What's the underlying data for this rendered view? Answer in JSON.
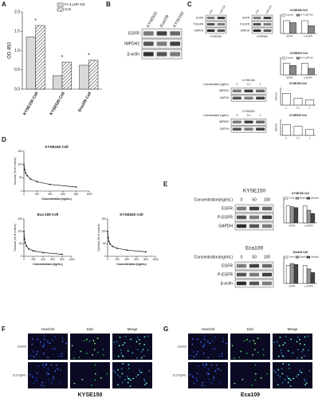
{
  "A": {
    "letter": "A",
    "y_label": "OD 450",
    "categories": [
      "KYSE150 Cell",
      "KYSE520 Cell",
      "Eca109 Cell"
    ],
    "series": [
      {
        "name": "Fr-4,LDP-D3",
        "color": "#d9d9d9",
        "values": [
          1.35,
          0.35,
          0.62
        ]
      },
      {
        "name": "Con",
        "color": "#ffffff",
        "pattern": "diagonal",
        "values": [
          1.65,
          0.7,
          0.75
        ]
      }
    ],
    "ylim": [
      0,
      2
    ],
    "yticks": [
      {
        "value": 0,
        "label": "0.0"
      },
      0.5,
      {
        "value": 1,
        "label": "1.0"
      },
      1.5,
      {
        "value": 2,
        "label": "2.0"
      }
    ],
    "significance": [
      "*",
      "*",
      "*"
    ]
  },
  "B": {
    "letter": "B",
    "columns": [
      "KYSE520",
      "Eca109",
      "KYSE150"
    ],
    "rows": [
      "EGFR",
      "IMPDH2",
      "β-actin"
    ]
  },
  "C": {
    "letter": "C",
    "blots": [
      {
        "columns": [
          "Con",
          "LDP-D3"
        ],
        "rows": [
          "EGFR",
          "P-EGFR",
          "GAPDH"
        ],
        "caption": "KYSE150"
      },
      {
        "columns": [
          "Con",
          "LDP-D3"
        ],
        "rows": [
          "EGFR",
          "P-EGFR",
          "GAPDH"
        ],
        "caption": "KYSE520"
      },
      {
        "title": "KYSE150",
        "dose_label": "Concentration (ng/mL)",
        "columns": [
          "0",
          "0.1",
          "1"
        ],
        "rows": [
          "IMPDH2",
          "GAPDH"
        ]
      },
      {
        "title": "KYSE520",
        "dose_label": "Concentration (ng/mL)",
        "columns": [
          "0",
          "0.1",
          "1"
        ],
        "rows": [
          "IMPDH2",
          "GAPDH"
        ]
      }
    ],
    "charts": [
      {
        "title": "KYSE150 Cell",
        "categories": [
          "EGFR",
          "p-EGFR"
        ],
        "series": [
          {
            "name": "Control",
            "color": "#ffffff",
            "values": [
              1.0,
              1.0
            ]
          },
          {
            "name": "Fr-4,LDP-D3",
            "color": "#888888",
            "values": [
              0.85,
              0.6
            ]
          }
        ],
        "ylim": [
          0,
          1.5
        ]
      },
      {
        "title": "KYSE520 Cell",
        "categories": [
          "EGFR",
          "p-EGFR"
        ],
        "series": [
          {
            "name": "Control",
            "color": "#ffffff",
            "values": [
              1.0,
              1.0
            ]
          },
          {
            "name": "Fr-4,LDP-D3",
            "color": "#888888",
            "values": [
              0.8,
              0.55
            ]
          }
        ],
        "ylim": [
          0,
          1.5
        ]
      },
      {
        "title": "KYSE150 Cell",
        "y_label": "IMPDH2",
        "categories": [
          "0",
          "0.1",
          "1"
        ],
        "color": "#ffffff",
        "values": [
          1.0,
          0.6,
          0.45
        ],
        "ylim": [
          0,
          1.5
        ]
      },
      {
        "title": "KYSE520 Cell",
        "y_label": "IMPDH2",
        "categories": [
          "0",
          "0.1",
          "1"
        ],
        "color": "#ffffff",
        "values": [
          1.0,
          0.85,
          0.55
        ],
        "ylim": [
          0,
          1.5
        ]
      }
    ]
  },
  "D": {
    "letter": "D",
    "charts": [
      {
        "title": "KYSE150 Cell",
        "x_label": "Concentration (ng/mL)",
        "y_label": "Survival (% of control)",
        "x": [
          0,
          12.5,
          25,
          50,
          100,
          200,
          400,
          800
        ],
        "values": [
          100,
          80,
          68,
          58,
          45,
          35,
          25,
          15
        ],
        "xlim": [
          0,
          1000
        ],
        "xticks": [
          0,
          200,
          400,
          600,
          800,
          1000
        ],
        "ylim": [
          0,
          150
        ],
        "yticks": [
          0,
          50,
          100,
          150
        ]
      },
      {
        "title": "Eca-109 Cell",
        "x_label": "Concentration (ng/mL)",
        "y_label": "Survival (% of control)",
        "x": [
          0,
          12.5,
          25,
          50,
          100,
          200,
          400,
          800
        ],
        "values": [
          100,
          70,
          55,
          42,
          30,
          22,
          15,
          8
        ],
        "xlim": [
          0,
          1000
        ],
        "xticks": [
          0,
          200,
          400,
          600,
          800,
          1000
        ],
        "ylim": [
          0,
          150
        ],
        "yticks": [
          0,
          50,
          100,
          150
        ]
      },
      {
        "title": "KYSE520 Cell",
        "x_label": "Concentration (ng/mL)",
        "y_label": "Survival (% of control)",
        "x": [
          0,
          12.5,
          25,
          50,
          100,
          200,
          400,
          800
        ],
        "values": [
          100,
          75,
          60,
          50,
          40,
          32,
          25,
          18
        ],
        "xlim": [
          0,
          1000
        ],
        "xticks": [
          0,
          200,
          400,
          600,
          800,
          1000
        ],
        "ylim": [
          0,
          150
        ],
        "yticks": [
          0,
          50,
          100,
          150
        ]
      }
    ]
  },
  "E": {
    "letter": "E",
    "blots": [
      {
        "title": "KYSE150",
        "dose_label": "Concentration(ng/mL)",
        "columns": [
          "0",
          "50",
          "100"
        ],
        "rows": [
          "EGFR",
          "P-EGFR",
          "GAPDH"
        ]
      },
      {
        "title": "Eca109",
        "dose_label": "Concentration(ng/mL)",
        "columns": [
          "0",
          "50",
          "100"
        ],
        "rows": [
          "EGFR",
          "P-EGFR",
          "β-actin"
        ]
      }
    ],
    "charts": [
      {
        "title": "KYSE150 Cell",
        "categories": [
          "EGFR",
          "p-EGFR"
        ],
        "series": [
          {
            "name": "Control",
            "color": "#ffffff",
            "values": [
              1.0,
              1.0
            ]
          },
          {
            "name": "50ng/mL",
            "color": "#999999",
            "values": [
              0.95,
              0.75
            ]
          },
          {
            "name": "100ng/mL",
            "color": "#444444",
            "values": [
              0.9,
              0.55
            ]
          }
        ],
        "ylim": [
          0,
          1.5
        ]
      },
      {
        "title": "Eca109 Cell",
        "categories": [
          "EGFR",
          "p-EGFR"
        ],
        "series": [
          {
            "name": "Control",
            "color": "#ffffff",
            "values": [
              1.0,
              1.0
            ]
          },
          {
            "name": "50ng/mL",
            "color": "#999999",
            "values": [
              1.1,
              0.8
            ]
          },
          {
            "name": "100ng/mL",
            "color": "#444444",
            "values": [
              1.05,
              0.6
            ]
          }
        ],
        "ylim": [
          0,
          1.5
        ]
      }
    ]
  },
  "F": {
    "letter": "F",
    "columns": [
      "Hoechst",
      "Edu",
      "Merge"
    ],
    "rows": [
      "Control",
      "12.5 ng/mL"
    ],
    "caption": "KYSE150"
  },
  "G": {
    "letter": "G",
    "columns": [
      "Hoechst",
      "Edu",
      "Merge"
    ],
    "rows": [
      "Control",
      "12.5 ng/mL"
    ],
    "caption": "Eca109"
  }
}
